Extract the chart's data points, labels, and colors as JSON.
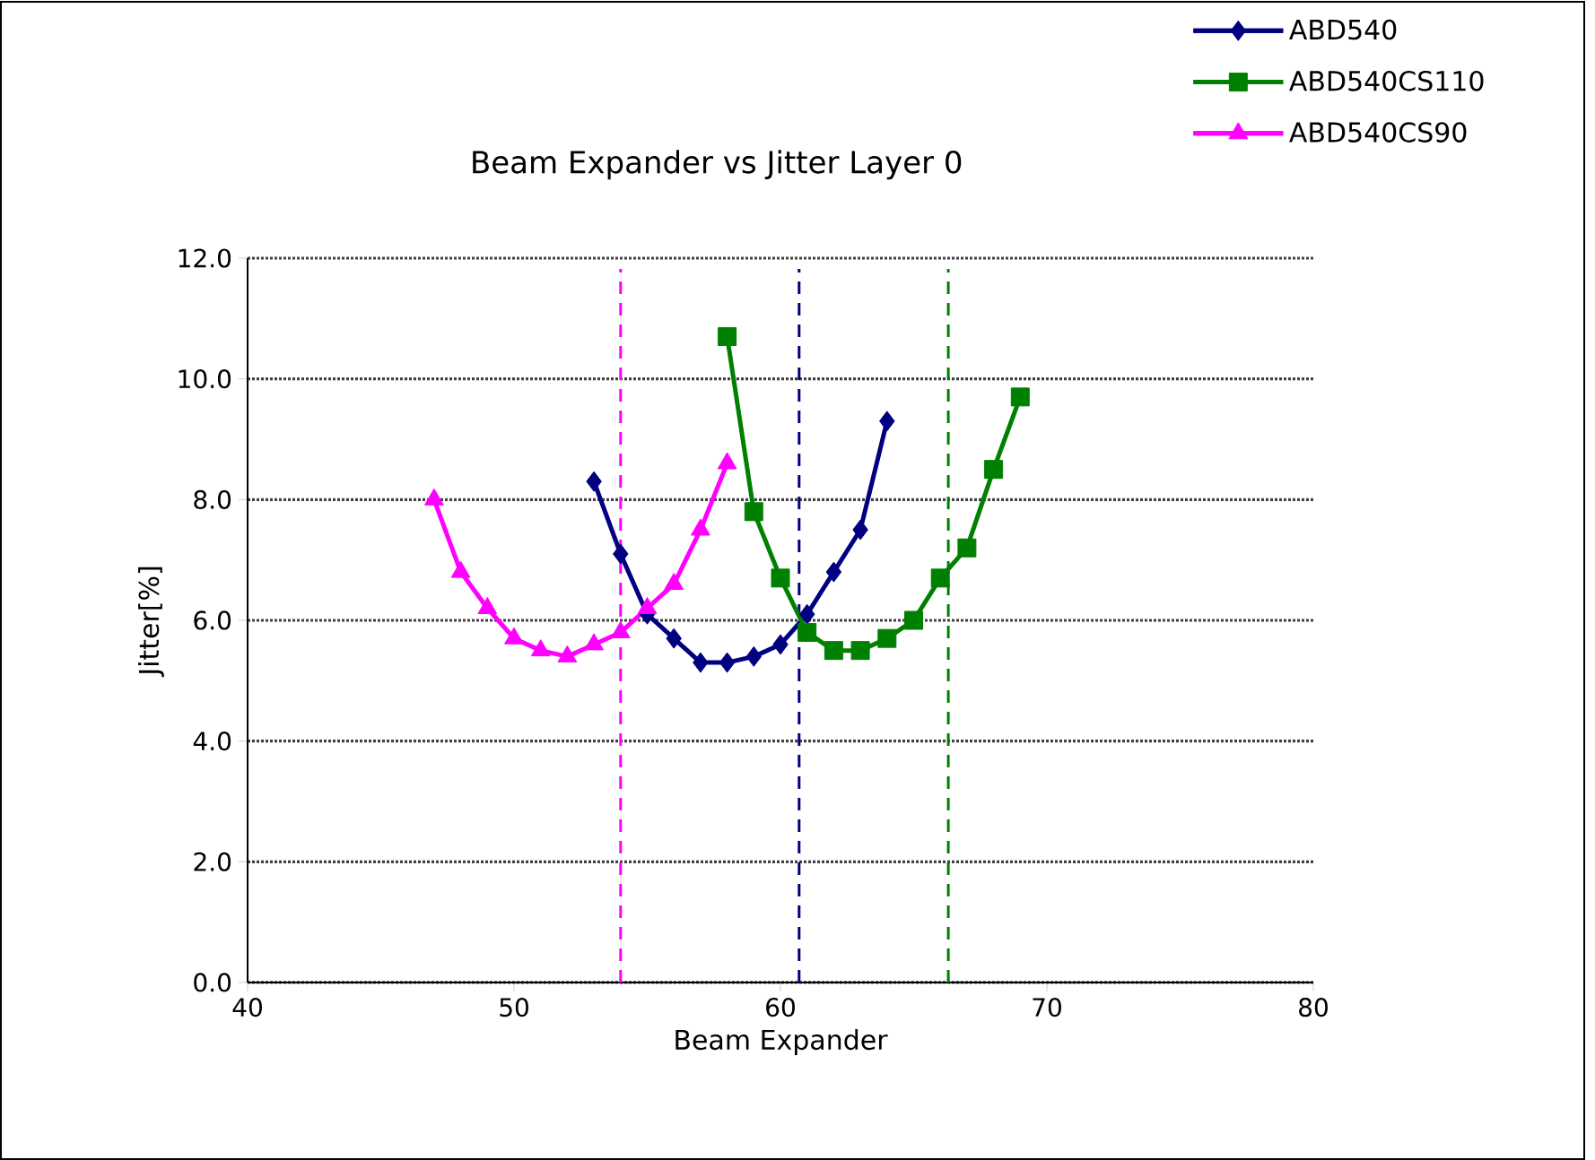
{
  "chart_data": {
    "type": "line",
    "title": "Beam Expander vs Jitter  Layer 0",
    "xlabel": "Beam Expander",
    "ylabel": "Jitter[%]",
    "xlim": [
      40,
      80
    ],
    "xticks": [
      40,
      50,
      60,
      70,
      80
    ],
    "ylim": [
      0,
      12
    ],
    "yticks": [
      {
        "value": 0,
        "label": "0.0"
      },
      {
        "value": 2,
        "label": "2.0"
      },
      {
        "value": 4,
        "label": "4.0"
      },
      {
        "value": 6,
        "label": "6.0"
      },
      {
        "value": 8,
        "label": "8.0"
      },
      {
        "value": 10,
        "label": "10.0"
      },
      {
        "value": 12,
        "label": "12.0"
      }
    ],
    "grid": "y",
    "legend": "top right",
    "series": [
      {
        "name": "ABD540",
        "color": "#000080",
        "marker": "diamond",
        "x": [
          53,
          54,
          55,
          56,
          57,
          58,
          59,
          60,
          61,
          62,
          63,
          64
        ],
        "values": [
          8.3,
          7.1,
          6.1,
          5.7,
          5.3,
          5.3,
          5.4,
          5.6,
          6.1,
          6.8,
          7.5,
          9.3
        ]
      },
      {
        "name": "ABD540CS110",
        "color": "#008000",
        "marker": "square",
        "x": [
          58,
          59,
          60,
          61,
          62,
          63,
          64,
          65,
          66,
          67,
          68,
          69
        ],
        "values": [
          10.7,
          7.8,
          6.7,
          5.8,
          5.5,
          5.5,
          5.7,
          6.0,
          6.7,
          7.2,
          8.5,
          9.7
        ]
      },
      {
        "name": "ABD540CS90",
        "color": "#ff00ff",
        "marker": "triangle",
        "x": [
          47,
          48,
          49,
          50,
          51,
          52,
          53,
          54,
          55,
          56,
          57,
          58
        ],
        "values": [
          8.0,
          6.8,
          6.2,
          5.7,
          5.5,
          5.4,
          5.6,
          5.8,
          6.2,
          6.6,
          7.5,
          8.6
        ]
      }
    ],
    "ref_lines": [
      {
        "axis": "x",
        "value": 54.0,
        "color": "#ff00ff",
        "line_style": "dashed"
      },
      {
        "axis": "x",
        "value": 60.7,
        "color": "#000080",
        "line_style": "dashed"
      },
      {
        "axis": "x",
        "value": 66.3,
        "color": "#008000",
        "line_style": "dashed"
      }
    ]
  }
}
